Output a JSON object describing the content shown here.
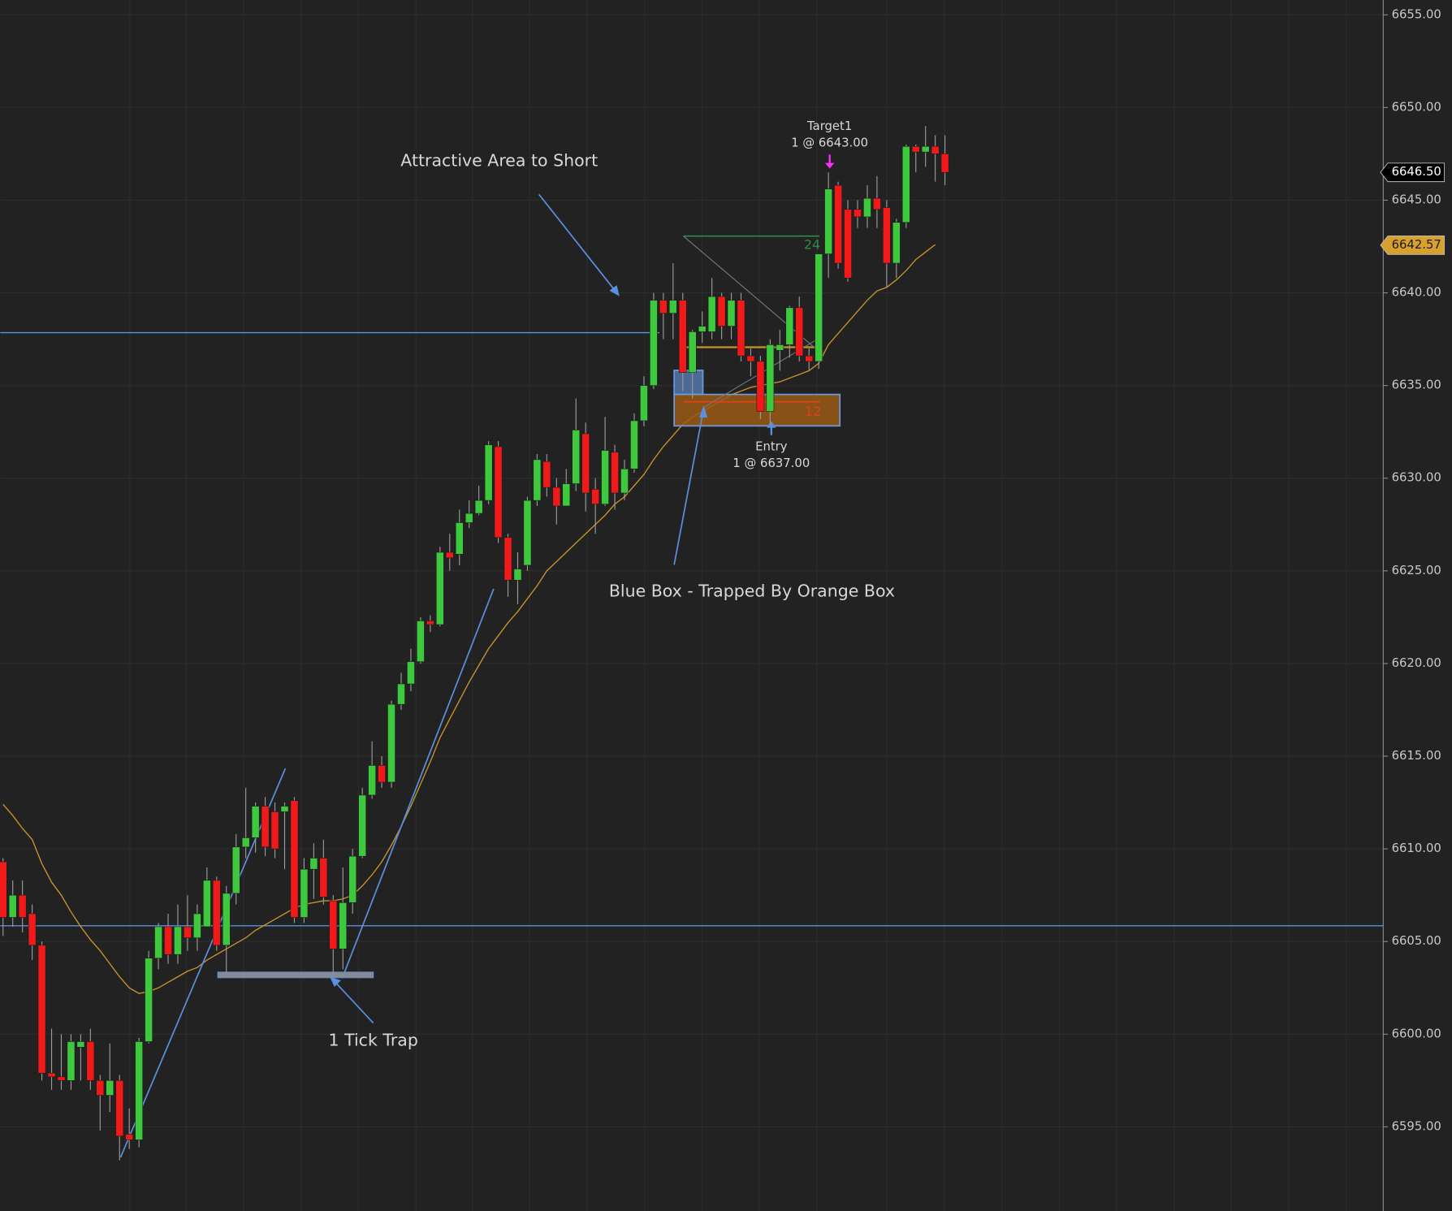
{
  "chart_data": {
    "type": "candlestick",
    "up_color": "#3ec83e",
    "down_color": "#f01a1a",
    "ylim": [
      6590.46,
      6655.8
    ],
    "yticks": [
      {
        "value": 6595,
        "label": "6595.00"
      },
      {
        "value": 6600,
        "label": "6600.00"
      },
      {
        "value": 6605,
        "label": "6605.00"
      },
      {
        "value": 6610,
        "label": "6610.00"
      },
      {
        "value": 6615,
        "label": "6615.00"
      },
      {
        "value": 6620,
        "label": "6620.00"
      },
      {
        "value": 6625,
        "label": "6625.00"
      },
      {
        "value": 6630,
        "label": "6630.00"
      },
      {
        "value": 6635,
        "label": "6635.00"
      },
      {
        "value": 6640,
        "label": "6640.00"
      },
      {
        "value": 6645,
        "label": "6645.00"
      },
      {
        "value": 6650,
        "label": "6650.00"
      },
      {
        "value": 6655,
        "label": "6655.00"
      }
    ],
    "grid": true,
    "open": [
      6609.3,
      6606.3,
      6607.5,
      6606.5,
      6604.8,
      6597.9,
      6597.7,
      6597.5,
      6599.3,
      6599.6,
      6597.5,
      6596.7,
      6597.5,
      6594.6,
      6594.3,
      6599.6,
      6604.1,
      6605.8,
      6604.3,
      6605.8,
      6605.2,
      6605.8,
      6608.3,
      6604.8,
      6607.6,
      6610.1,
      6610.6,
      6612.3,
      6612,
      6612,
      6612.6,
      6606.3,
      6608.9,
      6609.5,
      6607.2,
      6604.6,
      6607.1,
      6609.6,
      6612.9,
      6614.5,
      6613.6,
      6617.8,
      6618.9,
      6620.1,
      6622.3,
      6622.1,
      6626,
      6625.9,
      6627.6,
      6628.1,
      6628.8,
      6631.7,
      6626.8,
      6624.5,
      6625.3,
      6628.8,
      6630.9,
      6629.5,
      6628.5,
      6629.7,
      6632.4,
      6629.4,
      6628.6,
      6631.4,
      6629.2,
      6630.5,
      6633.1,
      6635,
      6639.6,
      6638.9,
      6639.6,
      6635.7,
      6637.9,
      6637.9,
      6639.8,
      6638.2,
      6639.6,
      6636.6,
      6636.3,
      6633.6,
      6636.9,
      6637.2,
      6639.2,
      6636.6,
      6636.3,
      6642.1,
      6645.8,
      6644.5,
      6644.5,
      6644.1,
      6645.1,
      6644.6,
      6641.6,
      6643.8,
      6647.9,
      6647.6,
      6647.9,
      6647.5
    ],
    "high": [
      6609.5,
      6608.3,
      6608.3,
      6607,
      6605,
      6600.3,
      6600,
      6600,
      6600,
      6600.3,
      6597.8,
      6599.5,
      6597.8,
      6596,
      6599.8,
      6604.5,
      6606,
      6606.5,
      6607,
      6607.5,
      6607,
      6609,
      6608.5,
      6608,
      6610.8,
      6613.3,
      6612.5,
      6612.8,
      6612.5,
      6612.5,
      6612.8,
      6609.5,
      6610.3,
      6610.5,
      6607.5,
      6609,
      6610,
      6613.3,
      6615.8,
      6615,
      6618,
      6619.5,
      6620.8,
      6622.5,
      6622.6,
      6626.3,
      6627,
      6628.3,
      6628.8,
      6629.6,
      6632,
      6632,
      6627,
      6626,
      6629,
      6631.3,
      6631.3,
      6630,
      6630.5,
      6634.3,
      6633,
      6630,
      6633.3,
      6631.8,
      6631,
      6633.5,
      6635.5,
      6640,
      6640,
      6641.6,
      6640,
      6638,
      6639,
      6640.8,
      6640,
      6640,
      6640,
      6637,
      6636.6,
      6637.5,
      6638,
      6639.3,
      6639.8,
      6637,
      6642.1,
      6646.5,
      6646,
      6645,
      6645,
      6645.8,
      6646.3,
      6645,
      6644,
      6648,
      6648,
      6649,
      6648.5,
      6648.5
    ],
    "low": [
      6605.3,
      6605.8,
      6605.5,
      6604,
      6597.5,
      6597,
      6597,
      6597,
      6597.5,
      6597,
      6594.8,
      6595.8,
      6593.2,
      6593.8,
      6593.9,
      6599.5,
      6603.5,
      6603.8,
      6603.8,
      6604.5,
      6604.5,
      6605.8,
      6604.5,
      6603.3,
      6607,
      6609.5,
      6609.8,
      6609.6,
      6609.5,
      6608.9,
      6606,
      6606,
      6607.3,
      6607,
      6603.2,
      6603.5,
      6606.5,
      6609.5,
      6612.7,
      6613.3,
      6613.3,
      6617.5,
      6618.5,
      6620,
      6621.7,
      6622,
      6625,
      6625.3,
      6627.3,
      6628,
      6628.6,
      6626.5,
      6623.6,
      6623.2,
      6625,
      6628.5,
      6629,
      6627.5,
      6628.5,
      6629.3,
      6628.2,
      6627,
      6628.5,
      6628.3,
      6628.8,
      6630.3,
      6632.8,
      6634.8,
      6637.5,
      6637.5,
      6634.7,
      6634.3,
      6637.3,
      6637.5,
      6637.5,
      6637.5,
      6636.3,
      6635.5,
      6633.2,
      6632.9,
      6635.8,
      6636.5,
      6636.3,
      6635.8,
      6635.9,
      6640.8,
      6641.3,
      6640.6,
      6643.5,
      6643.5,
      6643.5,
      6640.3,
      6640.8,
      6643.5,
      6646.5,
      6646.8,
      6646,
      6645.8
    ],
    "close": [
      6606.3,
      6607.5,
      6606.3,
      6604.8,
      6597.9,
      6597.7,
      6597.5,
      6599.6,
      6599.6,
      6597.5,
      6596.7,
      6597.5,
      6594.5,
      6594.3,
      6599.6,
      6604.1,
      6605.8,
      6604.3,
      6605.8,
      6605.2,
      6606.5,
      6608.3,
      6604.8,
      6607.6,
      6610.1,
      6610.6,
      6612.3,
      6610.1,
      6610,
      6612.3,
      6606.3,
      6608.9,
      6609.5,
      6607.4,
      6604.6,
      6607.1,
      6609.6,
      6612.9,
      6614.5,
      6613.6,
      6617.8,
      6618.9,
      6620.1,
      6622.3,
      6622.1,
      6626,
      6625.7,
      6627.6,
      6628.1,
      6628.8,
      6631.8,
      6626.8,
      6624.5,
      6625.1,
      6628.8,
      6631,
      6629.5,
      6628.5,
      6629.7,
      6632.6,
      6629.2,
      6628.6,
      6631.5,
      6629.2,
      6630.5,
      6633.1,
      6635,
      6639.6,
      6638.9,
      6639.6,
      6635.7,
      6637.9,
      6638.2,
      6639.8,
      6638.2,
      6639.6,
      6636.6,
      6636.3,
      6633.6,
      6637.2,
      6637.2,
      6639.2,
      6636.6,
      6636.3,
      6642.1,
      6645.6,
      6641.6,
      6640.8,
      6644.1,
      6645.1,
      6644.5,
      6641.6,
      6643.8,
      6647.9,
      6647.6,
      6647.9,
      6647.5,
      6646.5
    ],
    "ma": {
      "color": "#c8922a",
      "values": [
        6612.4,
        6611.8,
        6611.1,
        6610.5,
        6609.2,
        6608.2,
        6607.5,
        6606.6,
        6605.8,
        6605.1,
        6604.5,
        6603.8,
        6603.1,
        6602.5,
        6602.2,
        6602.3,
        6602.5,
        6602.8,
        6603.1,
        6603.4,
        6603.6,
        6604,
        6604.3,
        6604.6,
        6604.9,
        6605.2,
        6605.6,
        6605.9,
        6606.2,
        6606.5,
        6606.8,
        6607,
        6607.1,
        6607.2,
        6607.2,
        6607.3,
        6607.5,
        6608,
        6608.6,
        6609.3,
        6610.2,
        6611.2,
        6612.3,
        6613.5,
        6614.7,
        6616,
        6617,
        6618,
        6619,
        6619.9,
        6620.8,
        6621.5,
        6622.2,
        6622.8,
        6623.5,
        6624.2,
        6625,
        6625.5,
        6626,
        6626.5,
        6627,
        6627.5,
        6628,
        6628.6,
        6629,
        6629.6,
        6630.2,
        6631,
        6631.7,
        6632.3,
        6632.9,
        6633.3,
        6633.6,
        6633.9,
        6634.2,
        6634.5,
        6634.7,
        6634.9,
        6635,
        6635.1,
        6635.2,
        6635.4,
        6635.6,
        6635.8,
        6636.2,
        6637.2,
        6637.8,
        6638.4,
        6639,
        6639.6,
        6640.1,
        6640.3,
        6640.7,
        6641.2,
        6641.8,
        6642.2,
        6642.6,
        null
      ]
    },
    "horizontal_lines": [
      {
        "value": 6637.85,
        "color": "#5b8fe0"
      },
      {
        "value": 6605.85,
        "color": "#5b8fe0"
      }
    ],
    "price_markers": [
      {
        "value": 6646.5,
        "label": "6646.50",
        "color": "#000000",
        "text_color": "#ffffff"
      },
      {
        "value": 6642.57,
        "label": "6642.57",
        "color": "#d9a12b",
        "text_color": "#1a1a1a"
      }
    ],
    "annotations": {
      "short_area": "Attractive Area to Short",
      "blue_box": "Blue Box - Trapped By Orange Box",
      "tick_trap": "1 Tick Trap",
      "target": "Target1",
      "target_fill": "1 @ 6643.00",
      "entry": "Entry",
      "entry_fill": "1 @ 6637.00",
      "target_ticks": "24",
      "stop_ticks": "12"
    }
  }
}
